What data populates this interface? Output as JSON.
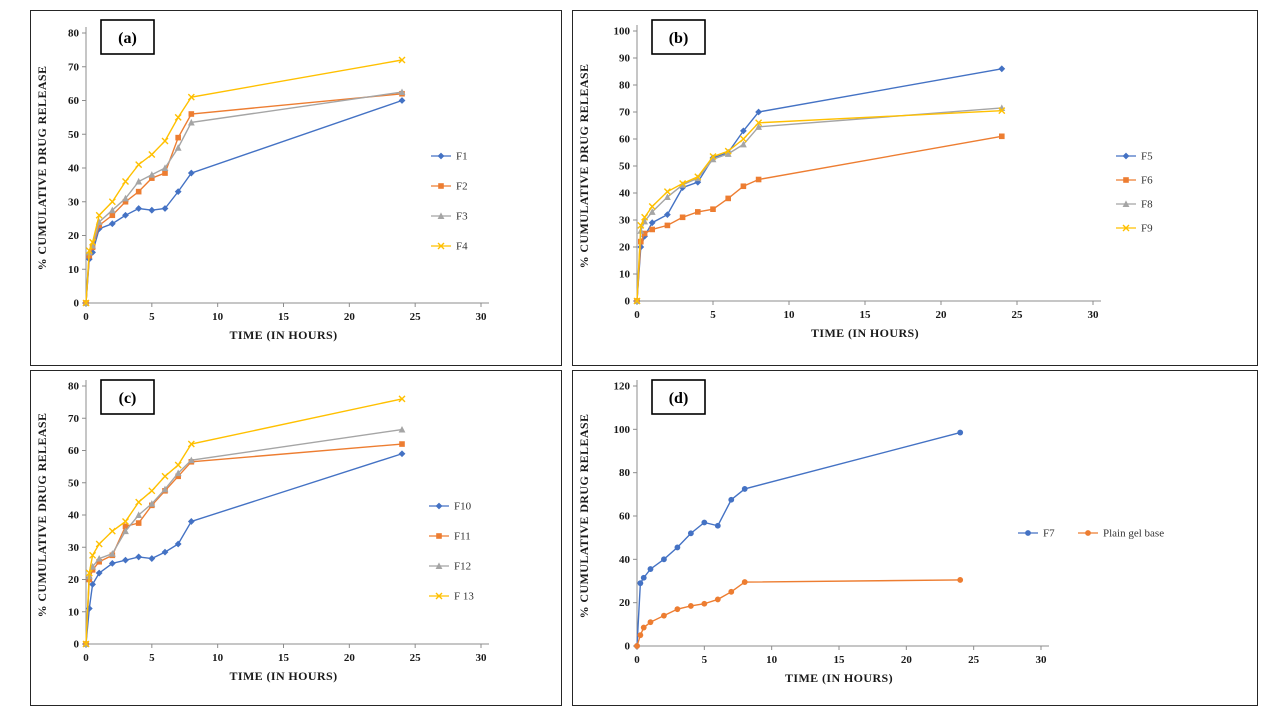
{
  "figure": {
    "description": "Four-panel cumulative drug release line charts",
    "panel_labels": [
      "(a)",
      "(b)",
      "(c)",
      "(d)"
    ],
    "colors": {
      "series_blue": "#4472C4",
      "series_orange": "#ED7D31",
      "series_gray": "#A5A5A5",
      "series_yellow": "#FFC000",
      "axis": "#8c8c8c",
      "background": "#ffffff"
    }
  },
  "chart_data": [
    {
      "type": "line",
      "panel_label": "(a)",
      "xlabel": "TIME (IN HOURS)",
      "ylabel": "% CUMULATIVE DRUG RELEASE",
      "xlim": [
        0,
        30
      ],
      "ylim": [
        0,
        80
      ],
      "xtick_step": 5,
      "ytick_step": 10,
      "grid": false,
      "legend_position": "inside-right-vertical",
      "x": [
        0,
        0.25,
        0.5,
        1,
        2,
        3,
        4,
        5,
        6,
        7,
        8,
        24
      ],
      "series": [
        {
          "name": "F1",
          "color": "#4472C4",
          "marker": "diamond",
          "values": [
            0,
            13,
            15,
            22,
            23.5,
            26,
            28,
            27.5,
            28,
            33,
            38.5,
            60
          ]
        },
        {
          "name": "F2",
          "color": "#ED7D31",
          "marker": "square",
          "values": [
            0,
            14,
            16.5,
            23,
            26,
            30,
            33,
            37,
            38.5,
            49,
            56,
            62
          ]
        },
        {
          "name": "F3",
          "color": "#A5A5A5",
          "marker": "triangle",
          "values": [
            0,
            15,
            17,
            24,
            27.5,
            31,
            36,
            38,
            40,
            46,
            53.5,
            62.5
          ]
        },
        {
          "name": "F4",
          "color": "#FFC000",
          "marker": "x",
          "values": [
            0,
            15.5,
            18,
            26,
            30,
            36,
            41,
            44,
            48,
            55,
            61,
            72
          ]
        }
      ]
    },
    {
      "type": "line",
      "panel_label": "(b)",
      "xlabel": "TIME (IN HOURS)",
      "ylabel": "% CUMULATIVE DRUG RELEASE",
      "xlim": [
        0,
        30
      ],
      "ylim": [
        0,
        100
      ],
      "xtick_step": 5,
      "ytick_step": 10,
      "grid": false,
      "legend_position": "outside-right-vertical",
      "x": [
        0,
        0.25,
        0.5,
        1,
        2,
        3,
        4,
        5,
        6,
        7,
        8,
        24
      ],
      "series": [
        {
          "name": "F5",
          "color": "#4472C4",
          "marker": "diamond",
          "values": [
            0,
            20,
            24,
            29,
            32,
            42,
            44,
            53,
            55,
            63,
            70,
            86
          ]
        },
        {
          "name": "F6",
          "color": "#ED7D31",
          "marker": "square",
          "values": [
            0,
            22,
            25,
            26.5,
            28,
            31,
            33,
            34,
            38,
            42.5,
            45,
            61
          ]
        },
        {
          "name": "F8",
          "color": "#A5A5A5",
          "marker": "triangle",
          "values": [
            0,
            26,
            29.5,
            33,
            38.5,
            43,
            45.5,
            52.5,
            54.5,
            58,
            64.5,
            71.5
          ]
        },
        {
          "name": "F9",
          "color": "#FFC000",
          "marker": "x",
          "values": [
            0,
            28,
            31,
            35,
            40.5,
            43.5,
            46,
            53.5,
            55.5,
            60,
            66,
            70.5
          ]
        }
      ]
    },
    {
      "type": "line",
      "panel_label": "(c)",
      "xlabel": "TIME (IN HOURS)",
      "ylabel": "% CUMULATIVE DRUG RELEASE",
      "xlim": [
        0,
        30
      ],
      "ylim": [
        0,
        80
      ],
      "xtick_step": 5,
      "ytick_step": 10,
      "grid": false,
      "legend_position": "inside-right-vertical",
      "x": [
        0,
        0.25,
        0.5,
        1,
        2,
        3,
        4,
        5,
        6,
        7,
        8,
        24
      ],
      "series": [
        {
          "name": "F10",
          "color": "#4472C4",
          "marker": "diamond",
          "values": [
            0,
            11,
            18.5,
            22,
            25,
            26,
            27,
            26.5,
            28.5,
            31,
            38,
            59
          ]
        },
        {
          "name": "F11",
          "color": "#ED7D31",
          "marker": "square",
          "values": [
            0,
            20,
            23,
            25.5,
            27.5,
            36.5,
            37.5,
            43,
            47.5,
            52,
            56.5,
            62
          ]
        },
        {
          "name": "F12",
          "color": "#A5A5A5",
          "marker": "triangle",
          "values": [
            0,
            21,
            24,
            26.5,
            28,
            35,
            40,
            43.5,
            48,
            53,
            57,
            66.5
          ]
        },
        {
          "name": "F 13",
          "color": "#FFC000",
          "marker": "x",
          "values": [
            0,
            22,
            27.5,
            31,
            35,
            38,
            44,
            47.5,
            52,
            55.5,
            62,
            76
          ]
        }
      ]
    },
    {
      "type": "line",
      "panel_label": "(d)",
      "xlabel": "TIME (IN HOURS)",
      "ylabel": "% CUMULATIVE DRUG RELEASE",
      "xlim": [
        0,
        30
      ],
      "ylim": [
        0,
        120
      ],
      "xtick_step": 5,
      "ytick_step": 20,
      "grid": false,
      "legend_position": "right-horizontal",
      "x": [
        0,
        0.25,
        0.5,
        1,
        2,
        3,
        4,
        5,
        6,
        7,
        8,
        24
      ],
      "series": [
        {
          "name": "F7",
          "color": "#4472C4",
          "marker": "circle",
          "values": [
            0,
            29,
            31.5,
            35.5,
            40,
            45.5,
            52,
            57,
            55.5,
            67.5,
            72.5,
            98.5
          ]
        },
        {
          "name": "Plain gel base",
          "color": "#ED7D31",
          "marker": "circle",
          "values": [
            0,
            5,
            8.5,
            11,
            14,
            17,
            18.5,
            19.5,
            21.5,
            25,
            29.5,
            30.5
          ]
        }
      ]
    }
  ]
}
